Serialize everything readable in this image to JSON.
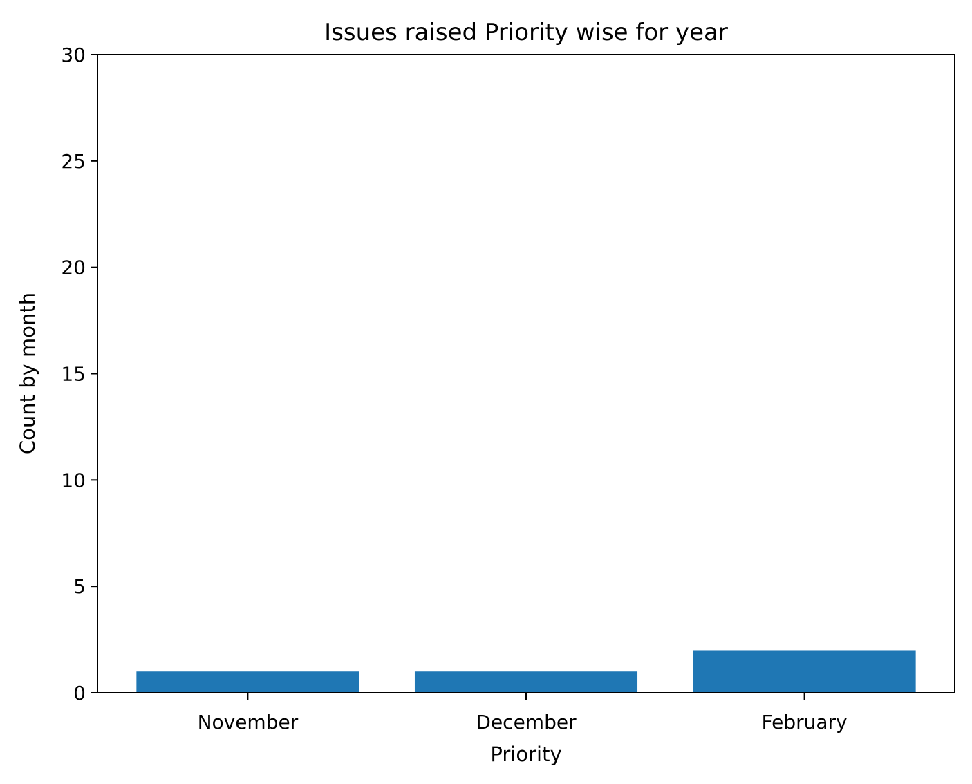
{
  "chart_data": {
    "type": "bar",
    "title": "Issues raised Priority wise for  year",
    "xlabel": "Priority",
    "ylabel": "Count by month",
    "categories": [
      "November",
      "December",
      "February"
    ],
    "values": [
      1,
      1,
      2
    ],
    "ylim": [
      0,
      30
    ],
    "yticks": [
      0,
      5,
      10,
      15,
      20,
      25,
      30
    ],
    "grid": false,
    "legend": "none",
    "bar_color": "#1f77b4"
  }
}
